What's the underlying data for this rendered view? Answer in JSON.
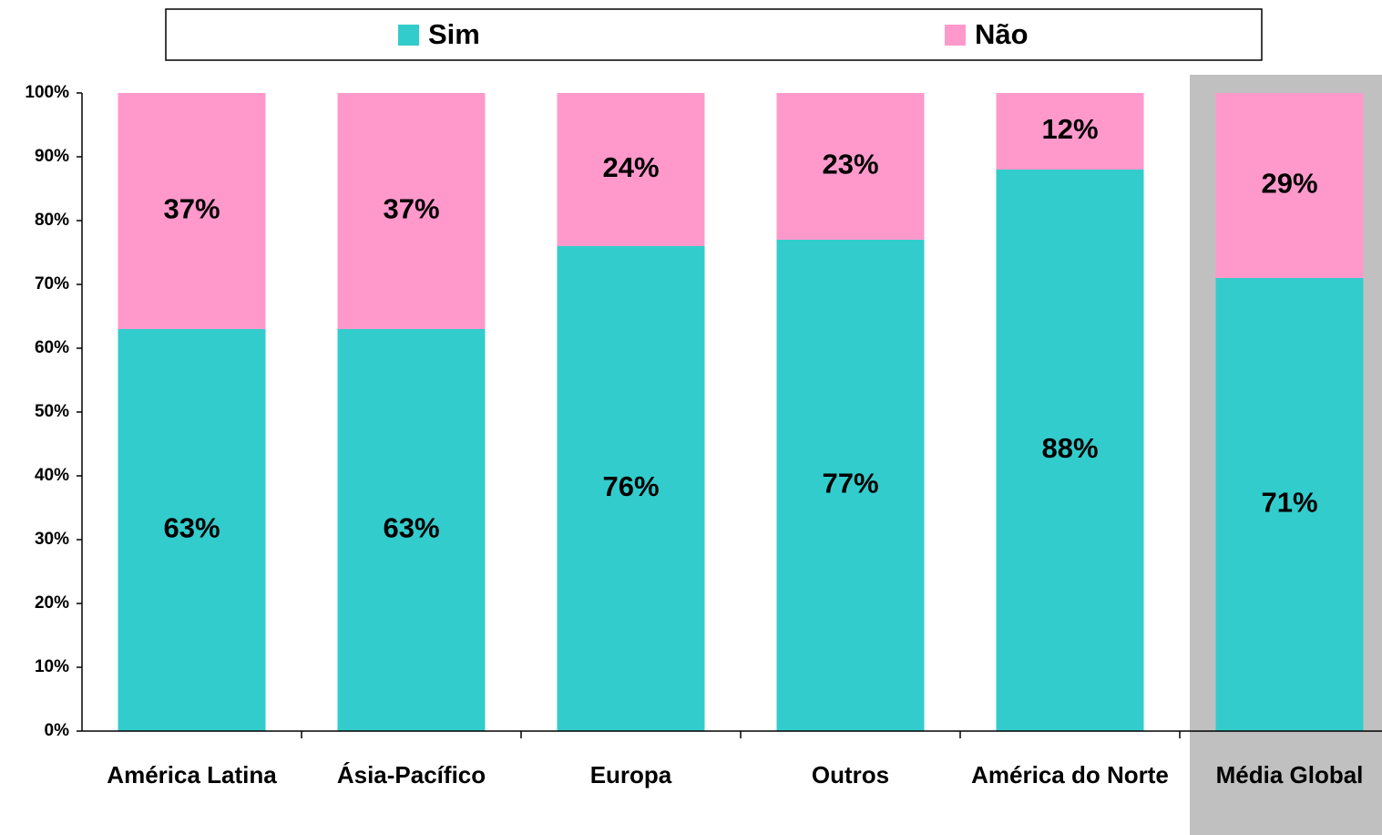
{
  "chart_data": {
    "type": "stacked_bar",
    "categories": [
      "América Latina",
      "Ásia-Pacífico",
      "Europa",
      "Outros",
      "América do Norte",
      "Média Global"
    ],
    "series": [
      {
        "name": "Sim",
        "color": "#33cccc",
        "values": [
          63,
          63,
          76,
          77,
          88,
          71
        ],
        "value_labels": [
          "63%",
          "63%",
          "76%",
          "77%",
          "88%",
          "71%"
        ]
      },
      {
        "name": "Não",
        "color": "#ff99cc",
        "values": [
          37,
          37,
          24,
          23,
          12,
          29
        ],
        "value_labels": [
          "37%",
          "37%",
          "24%",
          "23%",
          "12%",
          "29%"
        ]
      }
    ],
    "ylim": [
      0,
      100
    ],
    "yticks": [
      {
        "value": 0,
        "label": "0%"
      },
      {
        "value": 10,
        "label": "10%"
      },
      {
        "value": 20,
        "label": "20%"
      },
      {
        "value": 30,
        "label": "30%"
      },
      {
        "value": 40,
        "label": "40%"
      },
      {
        "value": 50,
        "label": "50%"
      },
      {
        "value": 60,
        "label": "60%"
      },
      {
        "value": 70,
        "label": "70%"
      },
      {
        "value": 80,
        "label": "80%"
      },
      {
        "value": 90,
        "label": "90%"
      },
      {
        "value": 100,
        "label": "100%"
      }
    ],
    "highlight_category": 5,
    "legend": "top"
  }
}
